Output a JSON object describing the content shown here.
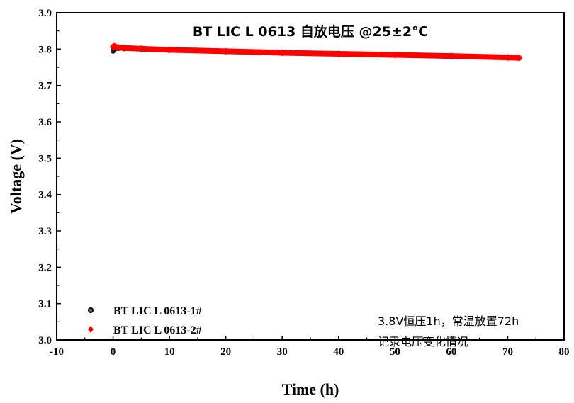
{
  "chart_data": {
    "type": "scatter",
    "title": "BT LIC L 0613 自放电压 @25±2℃",
    "xlabel": "Time (h)",
    "ylabel": "Voltage (V)",
    "xlim": [
      -10,
      80
    ],
    "ylim": [
      3.0,
      3.9
    ],
    "xticks": [
      -10,
      0,
      10,
      20,
      30,
      40,
      50,
      60,
      70,
      80
    ],
    "yticks": [
      3.0,
      3.1,
      3.2,
      3.3,
      3.4,
      3.5,
      3.6,
      3.7,
      3.8,
      3.9
    ],
    "xtick_labels": [
      "-10",
      "0",
      "10",
      "20",
      "30",
      "40",
      "50",
      "60",
      "70",
      "80"
    ],
    "ytick_labels": [
      "3.0",
      "3.1",
      "3.2",
      "3.3",
      "3.4",
      "3.5",
      "3.6",
      "3.7",
      "3.8",
      "3.9"
    ],
    "grid": false,
    "legend_position": "bottom-left",
    "series": [
      {
        "name": "BT LIC L 0613-1#",
        "color": "#000000",
        "marker": "circle",
        "x": [
          0,
          0.2,
          0.5,
          1,
          2,
          5,
          10,
          20,
          30,
          40,
          50,
          60,
          70,
          72
        ],
        "y": [
          3.795,
          3.8,
          3.802,
          3.802,
          3.801,
          3.8,
          3.797,
          3.793,
          3.789,
          3.786,
          3.783,
          3.78,
          3.776,
          3.775
        ]
      },
      {
        "name": "BT LIC L 0613-2#",
        "color": "#ff0000",
        "marker": "diamond",
        "x": [
          0,
          0.2,
          0.5,
          1,
          2,
          5,
          10,
          20,
          30,
          40,
          50,
          60,
          70,
          72
        ],
        "y": [
          3.806,
          3.808,
          3.806,
          3.804,
          3.803,
          3.801,
          3.798,
          3.794,
          3.79,
          3.787,
          3.784,
          3.781,
          3.777,
          3.776
        ]
      }
    ],
    "annotation": {
      "line1": "3.8V恒压1h，常温放置72h",
      "line2": "记录电压变化情况"
    }
  }
}
